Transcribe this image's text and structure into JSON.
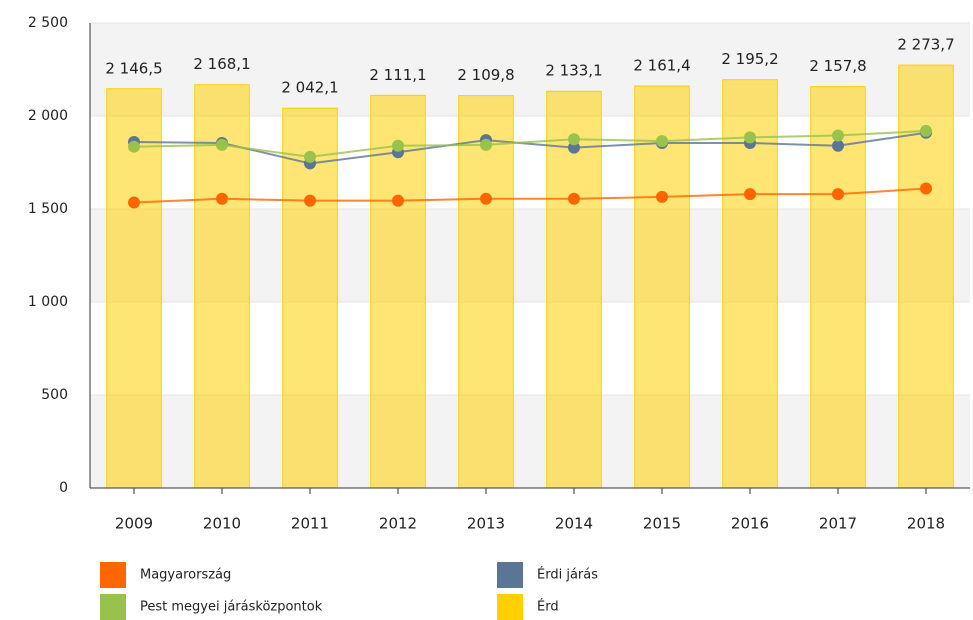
{
  "chart_data": {
    "type": "bar",
    "categories": [
      "2009",
      "2010",
      "2011",
      "2012",
      "2013",
      "2014",
      "2015",
      "2016",
      "2017",
      "2018"
    ],
    "series": [
      {
        "name": "Magyarország",
        "type": "line",
        "color": "#ff6600",
        "values": [
          1535,
          1555,
          1545,
          1545,
          1555,
          1555,
          1565,
          1580,
          1580,
          1610
        ]
      },
      {
        "name": "Érdi járás",
        "type": "line",
        "color": "#5b7597",
        "values": [
          1860,
          1855,
          1745,
          1805,
          1870,
          1830,
          1855,
          1855,
          1840,
          1910
        ]
      },
      {
        "name": "Pest megyei járásközpontok",
        "type": "line",
        "color": "#99c24d",
        "values": [
          1835,
          1845,
          1780,
          1840,
          1845,
          1875,
          1865,
          1885,
          1895,
          1920
        ]
      },
      {
        "name": "Érd",
        "type": "bar",
        "color": "#ffd000",
        "values": [
          2146.5,
          2168.1,
          2042.1,
          2111.1,
          2109.8,
          2133.1,
          2161.4,
          2195.2,
          2157.8,
          2273.7
        ],
        "value_labels": [
          "2 146,5",
          "2 168,1",
          "2 042,1",
          "2 111,1",
          "2 109,8",
          "2 133,1",
          "2 161,4",
          "2 195,2",
          "2 157,8",
          "2 273,7"
        ]
      }
    ],
    "ylim": [
      0,
      2500
    ],
    "yticks": [
      0,
      500,
      {
        "value": 1000,
        "label": "1 000"
      },
      {
        "value": 1500,
        "label": "1 500"
      },
      {
        "value": 2000,
        "label": "2 000"
      },
      {
        "value": 2500,
        "label": "2 500"
      }
    ],
    "grid": true
  }
}
